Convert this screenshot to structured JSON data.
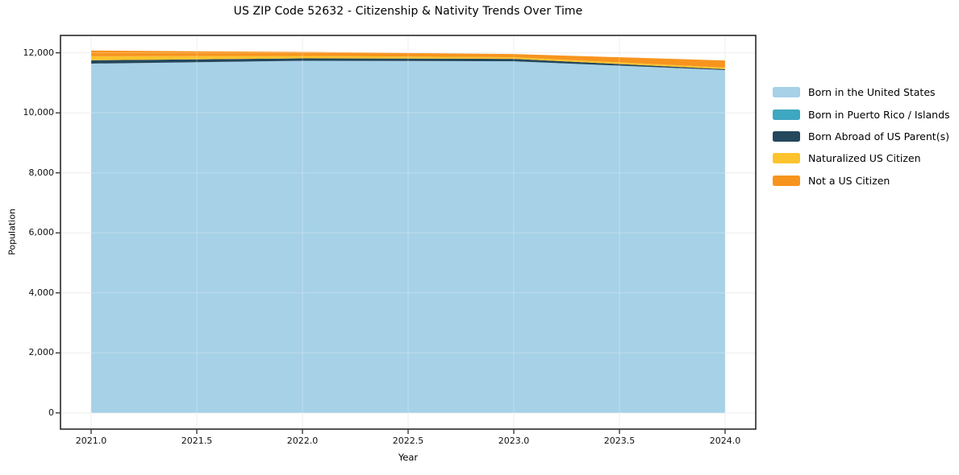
{
  "chart_data": {
    "type": "area",
    "stacked": true,
    "title": "US ZIP Code 52632 - Citizenship & Nativity Trends Over Time",
    "xlabel": "Year",
    "ylabel": "Population",
    "x": [
      2021,
      2022,
      2023,
      2024
    ],
    "series": [
      {
        "name": "Born in the United States",
        "color": "#a6d1e7",
        "values": [
          11640,
          11735,
          11720,
          11425
        ]
      },
      {
        "name": "Born in Puerto Rico / Islands",
        "color": "#3ea7c1",
        "values": [
          0,
          0,
          0,
          0
        ]
      },
      {
        "name": "Born Abroad of US Parent(s)",
        "color": "#25475c",
        "values": [
          110,
          80,
          80,
          30
        ]
      },
      {
        "name": "Naturalized US Citizen",
        "color": "#fcc32d",
        "values": [
          135,
          80,
          55,
          55
        ]
      },
      {
        "name": "Not a US Citizen",
        "color": "#f7941e",
        "values": [
          190,
          135,
          105,
          235
        ]
      }
    ],
    "totals": [
      12075,
      12030,
      11960,
      11745
    ],
    "xlim": [
      2020.855,
      2024.145
    ],
    "ylim": [
      -540,
      12580
    ],
    "xticks": {
      "values": [
        2021.0,
        2021.5,
        2022.0,
        2022.5,
        2023.0,
        2023.5,
        2024.0
      ],
      "labels": [
        "2021.0",
        "2021.5",
        "2022.0",
        "2022.5",
        "2023.0",
        "2023.5",
        "2024.0"
      ]
    },
    "yticks": {
      "values": [
        0,
        2000,
        4000,
        6000,
        8000,
        10000,
        12000
      ],
      "labels": [
        "0",
        "2,000",
        "4,000",
        "6,000",
        "8,000",
        "10,000",
        "12,000"
      ]
    },
    "grid": true,
    "legend_position": "right-outside",
    "colors": {
      "spine": "#1a1a1a",
      "grid": "#e9e9e9",
      "grid_overlay": "rgba(255,255,255,0.28)",
      "text": "#111111",
      "background": "#ffffff"
    }
  }
}
